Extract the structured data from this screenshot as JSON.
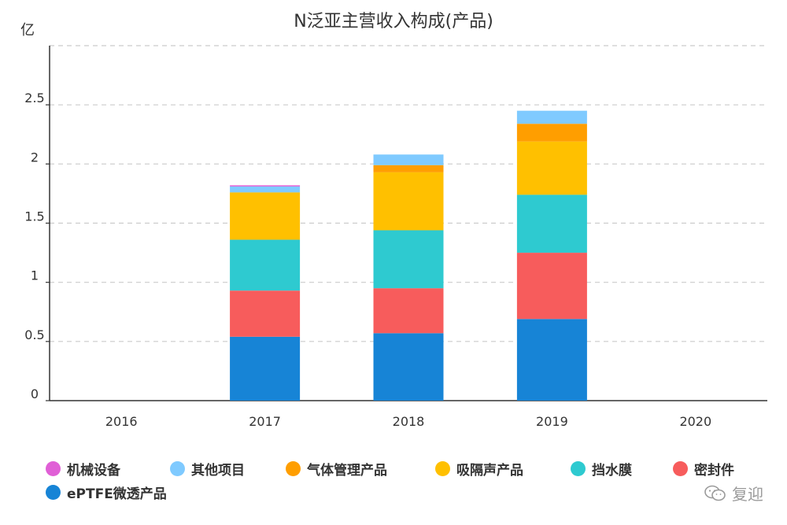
{
  "colors": {
    "machinery": "#e05fd6",
    "other": "#7fcaff",
    "gas_mgmt": "#ff9e00",
    "sound_absorb": "#ffc000",
    "water_membrane": "#2ecad0",
    "seal": "#f75c5c",
    "eptfe": "#1784d6",
    "axis": "#333333",
    "grid": "#cccccc",
    "watermark": "#9a9a9a"
  },
  "chart_data": {
    "type": "bar",
    "stacked": true,
    "title": "N泛亚主营收入构成(产品)",
    "unit_label": "亿",
    "xlabel": "",
    "ylabel": "亿",
    "ylim": [
      0,
      3
    ],
    "yticks": [
      "0",
      "0.5",
      "1",
      "1.5",
      "2",
      "2.5"
    ],
    "ytick_values": [
      0,
      0.5,
      1,
      1.5,
      2,
      2.5
    ],
    "grid": true,
    "legend_position": "bottom",
    "categories": [
      "2016",
      "2017",
      "2018",
      "2019",
      "2020"
    ],
    "series": [
      {
        "name": "ePTFE微透产品",
        "key": "eptfe",
        "values": [
          0,
          0.54,
          0.57,
          0.69,
          0
        ]
      },
      {
        "name": "密封件",
        "key": "seal",
        "values": [
          0,
          0.39,
          0.38,
          0.56,
          0
        ]
      },
      {
        "name": "挡水膜",
        "key": "water_membrane",
        "values": [
          0,
          0.43,
          0.49,
          0.49,
          0
        ]
      },
      {
        "name": "吸隔声产品",
        "key": "sound_absorb",
        "values": [
          0,
          0.4,
          0.49,
          0.45,
          0
        ]
      },
      {
        "name": "气体管理产品",
        "key": "gas_mgmt",
        "values": [
          0,
          0.0,
          0.06,
          0.15,
          0
        ]
      },
      {
        "name": "其他项目",
        "key": "other",
        "values": [
          0,
          0.05,
          0.09,
          0.11,
          0
        ]
      },
      {
        "name": "机械设备",
        "key": "machinery",
        "values": [
          0,
          0.01,
          0.0,
          0.0,
          0
        ]
      }
    ],
    "legend_order": [
      "机械设备",
      "其他项目",
      "气体管理产品",
      "吸隔声产品",
      "挡水膜",
      "密封件",
      "ePTFE微透产品"
    ]
  },
  "watermark": {
    "icon": "wechat-icon",
    "text": "复迎"
  }
}
